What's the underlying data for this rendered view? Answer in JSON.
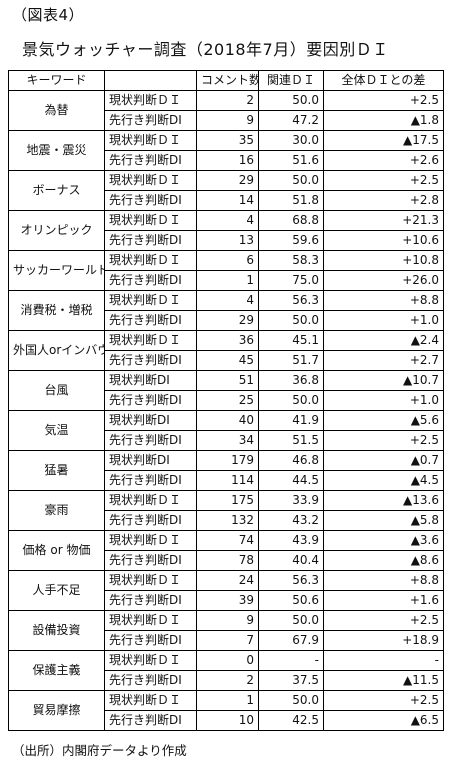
{
  "figure_label": "（図表4）",
  "title": "景気ウォッチャー調査（2018年7月）要因別ＤＩ",
  "headers": {
    "keyword": "キーワード",
    "type": "",
    "count": "コメント数",
    "di": "関連ＤＩ",
    "diff": "全体ＤＩとの差"
  },
  "groups": [
    {
      "keyword": "為替",
      "rows": [
        {
          "type": "現状判断ＤＩ",
          "count": "2",
          "di": "50.0",
          "diff": "+2.5"
        },
        {
          "type": "先行き判断DI",
          "count": "9",
          "di": "47.2",
          "diff": "▲1.8"
        }
      ]
    },
    {
      "keyword": "地震・震災",
      "rows": [
        {
          "type": "現状判断ＤＩ",
          "count": "35",
          "di": "30.0",
          "diff": "▲17.5"
        },
        {
          "type": "先行き判断DI",
          "count": "16",
          "di": "51.6",
          "diff": "+2.6"
        }
      ]
    },
    {
      "keyword": "ボーナス",
      "rows": [
        {
          "type": "現状判断ＤＩ",
          "count": "29",
          "di": "50.0",
          "diff": "+2.5"
        },
        {
          "type": "先行き判断DI",
          "count": "14",
          "di": "51.8",
          "diff": "+2.8"
        }
      ]
    },
    {
      "keyword": "オリンピック",
      "rows": [
        {
          "type": "現状判断ＤＩ",
          "count": "4",
          "di": "68.8",
          "diff": "+21.3"
        },
        {
          "type": "先行き判断DI",
          "count": "13",
          "di": "59.6",
          "diff": "+10.6"
        }
      ]
    },
    {
      "keyword": "サッカーワールドカップ",
      "rows": [
        {
          "type": "現状判断ＤＩ",
          "count": "6",
          "di": "58.3",
          "diff": "+10.8"
        },
        {
          "type": "先行き判断DI",
          "count": "1",
          "di": "75.0",
          "diff": "+26.0"
        }
      ]
    },
    {
      "keyword": "消費税・増税",
      "rows": [
        {
          "type": "現状判断ＤＩ",
          "count": "4",
          "di": "56.3",
          "diff": "+8.8"
        },
        {
          "type": "先行き判断DI",
          "count": "29",
          "di": "50.0",
          "diff": "+1.0"
        }
      ]
    },
    {
      "keyword": "外国人orインバウンド",
      "rows": [
        {
          "type": "現状判断ＤＩ",
          "count": "36",
          "di": "45.1",
          "diff": "▲2.4"
        },
        {
          "type": "先行き判断DI",
          "count": "45",
          "di": "51.7",
          "diff": "+2.7"
        }
      ]
    },
    {
      "keyword": "台風",
      "rows": [
        {
          "type": "現状判断DI",
          "count": "51",
          "di": "36.8",
          "diff": "▲10.7"
        },
        {
          "type": "先行き判断DI",
          "count": "25",
          "di": "50.0",
          "diff": "+1.0"
        }
      ]
    },
    {
      "keyword": "気温",
      "rows": [
        {
          "type": "現状判断DI",
          "count": "40",
          "di": "41.9",
          "diff": "▲5.6"
        },
        {
          "type": "先行き判断DI",
          "count": "34",
          "di": "51.5",
          "diff": "+2.5"
        }
      ]
    },
    {
      "keyword": "猛暑",
      "rows": [
        {
          "type": "現状判断DI",
          "count": "179",
          "di": "46.8",
          "diff": "▲0.7"
        },
        {
          "type": "先行き判断DI",
          "count": "114",
          "di": "44.5",
          "diff": "▲4.5"
        }
      ]
    },
    {
      "keyword": "豪雨",
      "rows": [
        {
          "type": "現状判断ＤＩ",
          "count": "175",
          "di": "33.9",
          "diff": "▲13.6"
        },
        {
          "type": "先行き判断DI",
          "count": "132",
          "di": "43.2",
          "diff": "▲5.8"
        }
      ]
    },
    {
      "keyword": "価格 or 物価",
      "rows": [
        {
          "type": "現状判断ＤＩ",
          "count": "74",
          "di": "43.9",
          "diff": "▲3.6"
        },
        {
          "type": "先行き判断DI",
          "count": "78",
          "di": "40.4",
          "diff": "▲8.6"
        }
      ]
    },
    {
      "keyword": "人手不足",
      "rows": [
        {
          "type": "現状判断ＤＩ",
          "count": "24",
          "di": "56.3",
          "diff": "+8.8"
        },
        {
          "type": "先行き判断DI",
          "count": "39",
          "di": "50.6",
          "diff": "+1.6"
        }
      ]
    },
    {
      "keyword": "設備投資",
      "rows": [
        {
          "type": "現状判断ＤＩ",
          "count": "9",
          "di": "50.0",
          "diff": "+2.5"
        },
        {
          "type": "先行き判断DI",
          "count": "7",
          "di": "67.9",
          "diff": "+18.9"
        }
      ]
    },
    {
      "keyword": "保護主義",
      "rows": [
        {
          "type": "現状判断ＤＩ",
          "count": "0",
          "di": "-",
          "diff": "-"
        },
        {
          "type": "先行き判断DI",
          "count": "2",
          "di": "37.5",
          "diff": "▲11.5"
        }
      ]
    },
    {
      "keyword": "貿易摩擦",
      "rows": [
        {
          "type": "現状判断ＤＩ",
          "count": "1",
          "di": "50.0",
          "diff": "+2.5"
        },
        {
          "type": "先行き判断DI",
          "count": "10",
          "di": "42.5",
          "diff": "▲6.5"
        }
      ]
    }
  ],
  "source": "（出所）内閣府データより作成"
}
